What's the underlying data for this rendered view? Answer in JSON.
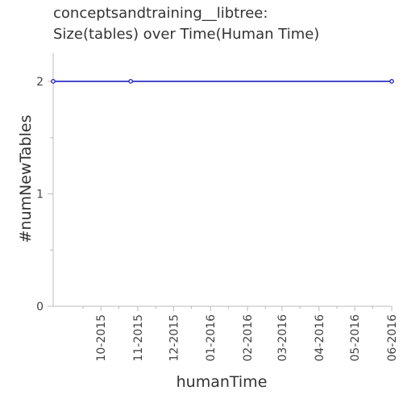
{
  "chart_data": {
    "type": "line",
    "title_line1": "conceptsandtraining__libtree:",
    "title_line2": "Size(tables) over Time(Human Time)",
    "xlabel": "humanTime",
    "ylabel": "#numNewTables",
    "x_tick_labels": [
      "10-2015",
      "11-2015",
      "12-2015",
      "01-2016",
      "02-2016",
      "03-2016",
      "04-2016",
      "05-2016",
      "06-2016"
    ],
    "y_ticks": [
      0,
      1,
      2
    ],
    "ylim": [
      0,
      2.25
    ],
    "xlim": [
      "2015-08-22",
      "2016-06-01"
    ],
    "grid": false,
    "series": [
      {
        "color": "#1f1fbf",
        "points": [
          {
            "x": "2015-08-22",
            "y": 2
          },
          {
            "x": "2015-10-26",
            "y": 2
          },
          {
            "x": "2016-06-01",
            "y": 2
          }
        ]
      }
    ]
  }
}
